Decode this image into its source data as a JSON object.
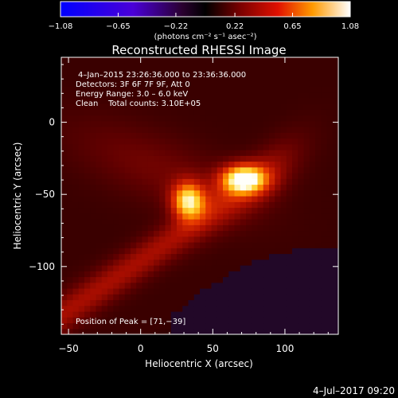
{
  "chart_data": {
    "type": "heatmap",
    "title": "Reconstructed RHESSI Image",
    "xlabel": "Heliocentric X (arcsec)",
    "ylabel": "Heliocentric Y (arcsec)",
    "xlim": [
      -55,
      137
    ],
    "ylim": [
      -147,
      45
    ],
    "x_ticks": [
      -50,
      0,
      50,
      100
    ],
    "x_tick_labels": [
      "−50",
      "0",
      "50",
      "100"
    ],
    "y_ticks": [
      0,
      -50,
      -100
    ],
    "y_tick_labels": [
      "0",
      "−50",
      "−100"
    ],
    "colorbar": {
      "min": -1.08,
      "max": 1.08,
      "ticks": [
        -1.08,
        -0.65,
        -0.22,
        0.22,
        0.65,
        1.08
      ],
      "tick_labels": [
        "−1.08",
        "−0.65",
        "−0.22",
        "0.22",
        "0.65",
        "1.08"
      ],
      "label": "(photons cm⁻² s⁻¹ asec⁻²)"
    },
    "annotations": [
      "4–Jan–2015 23:26:36.000 to 23:36:36.000",
      "Detectors: 3F 6F 7F 9F, Att 0",
      "Energy Range: 3.0 – 6.0 keV",
      "Clean    Total counts: 3.10E+05"
    ],
    "peak_label": "Position of Peak = [71,−39]",
    "peak": [
      71,
      -39
    ],
    "sources": [
      {
        "x": 71,
        "y": -39,
        "intensity": 1.0
      },
      {
        "x": 33,
        "y": -54,
        "intensity": 0.9
      }
    ],
    "timestamp": "4–Jul–2017 09:20"
  }
}
